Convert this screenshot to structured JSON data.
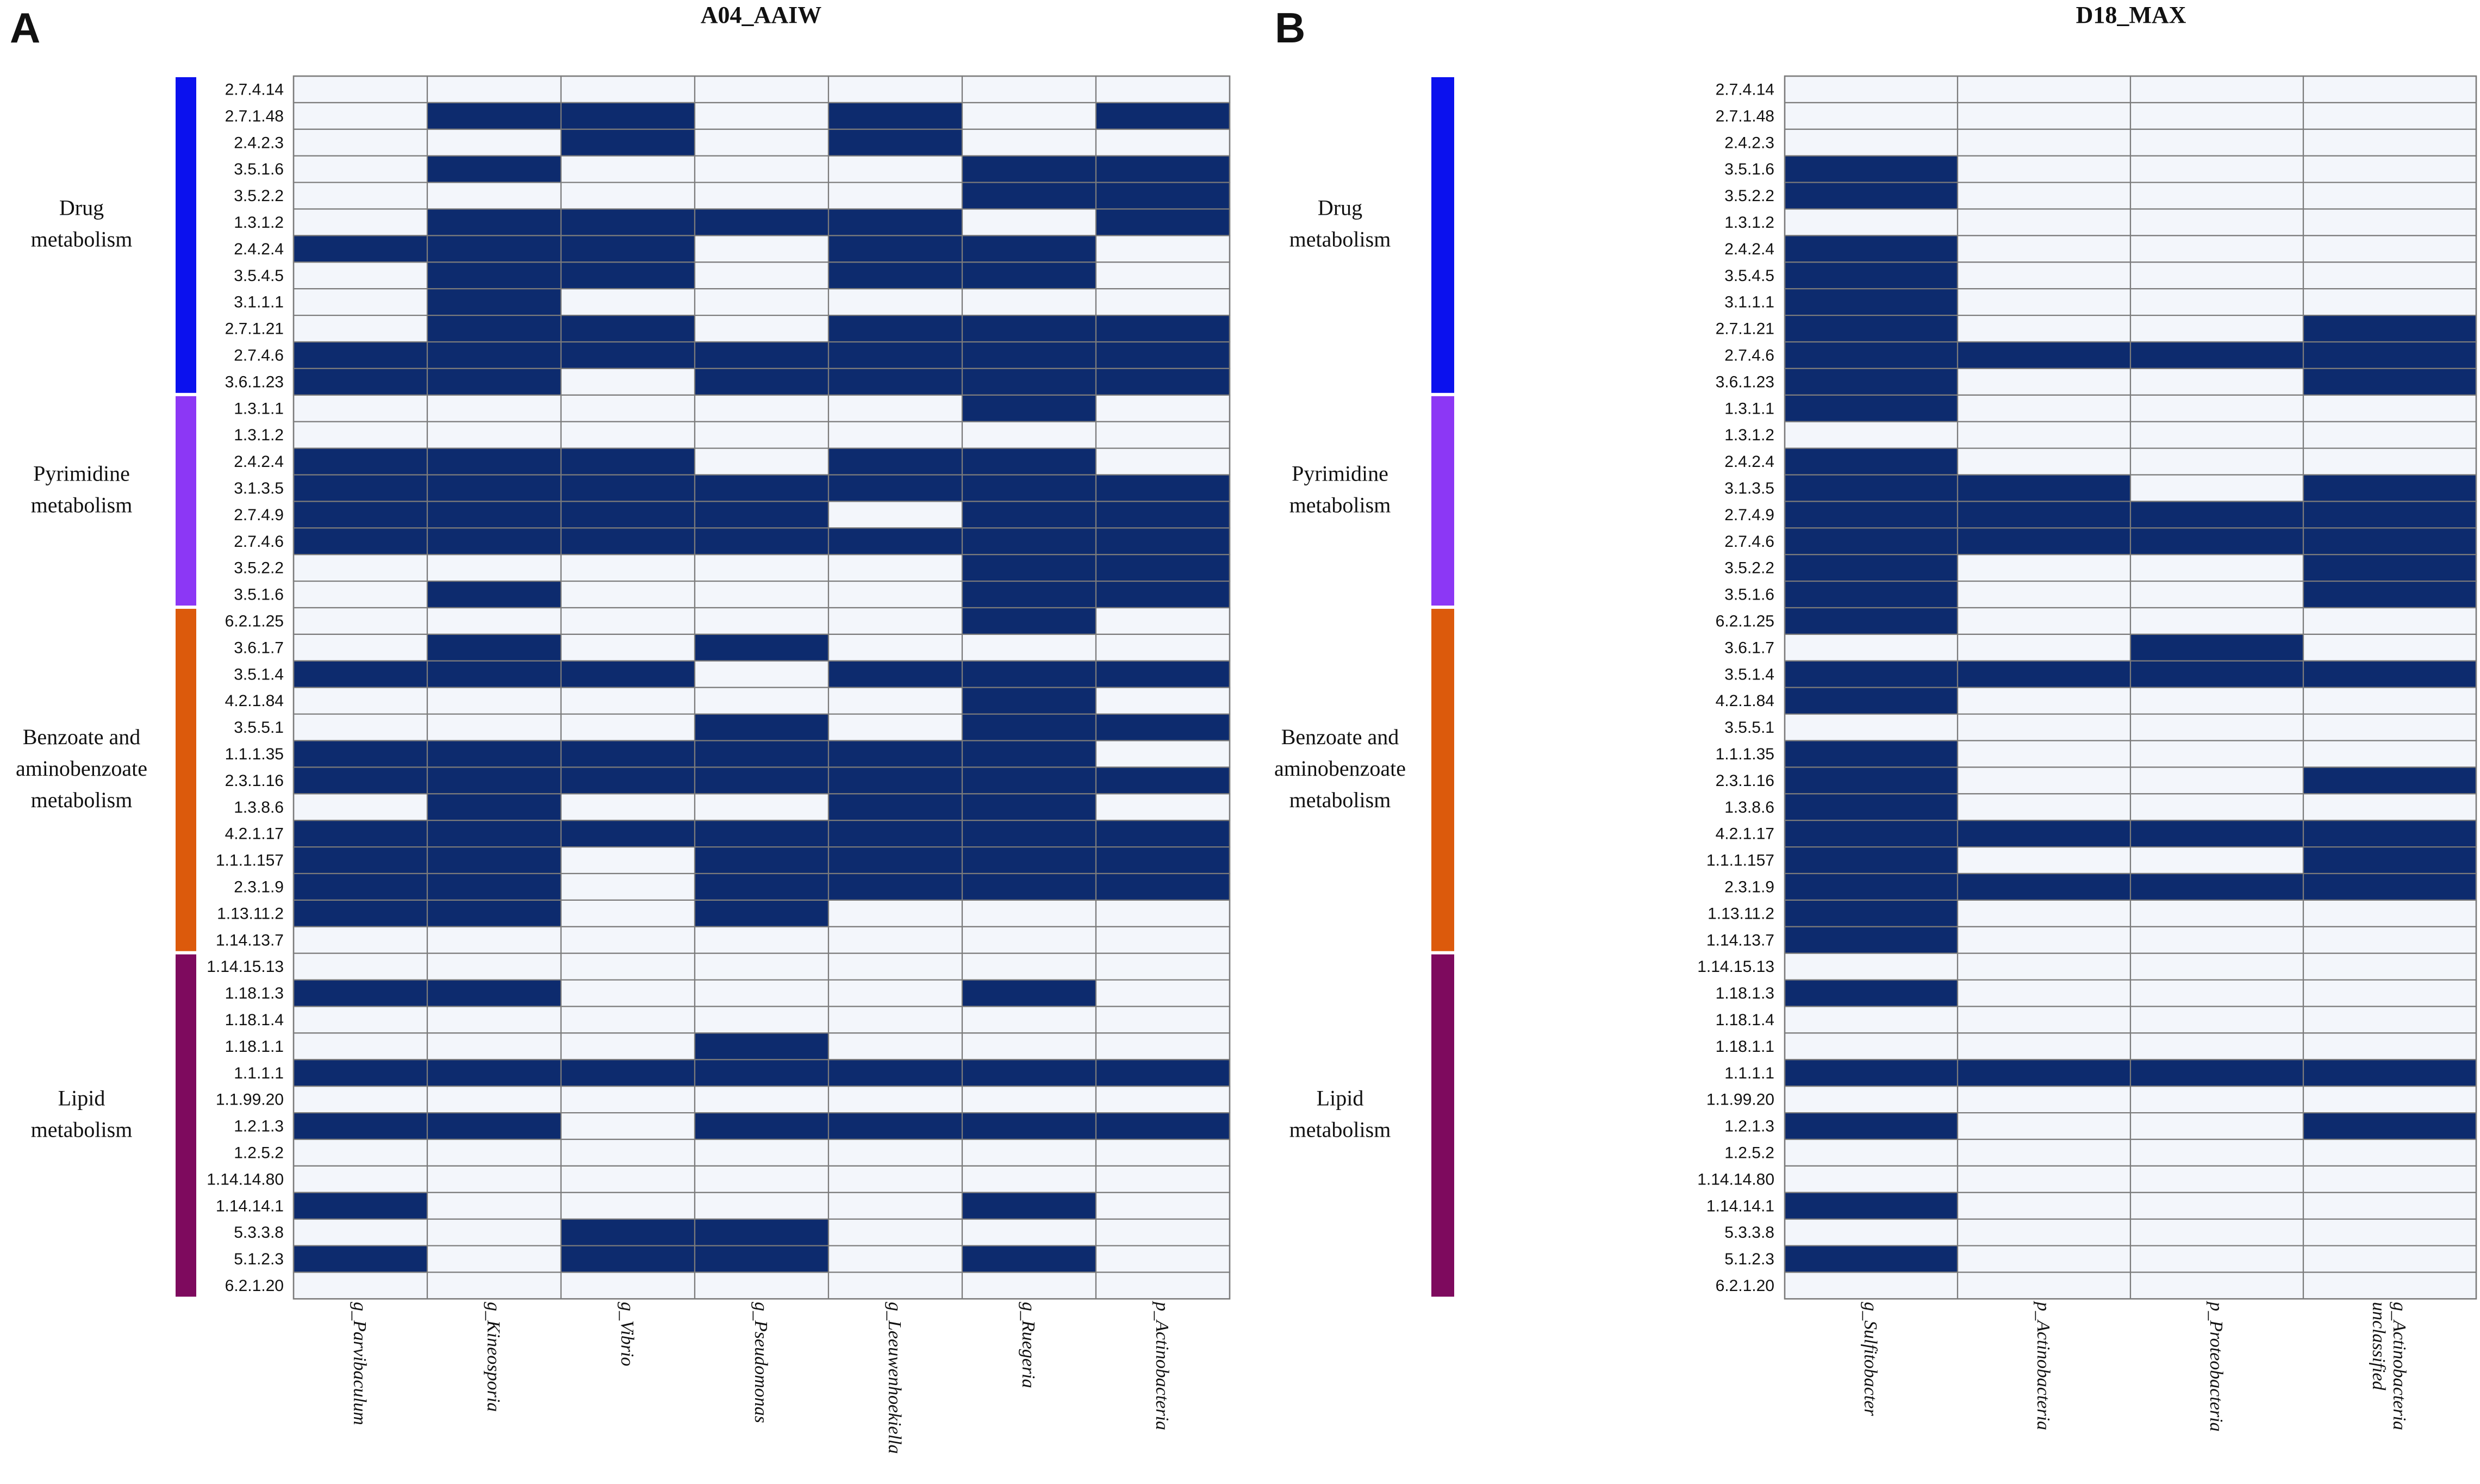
{
  "chart_data": [
    {
      "type": "heatmap",
      "panel_letter": "A",
      "title": "A04_AAIW",
      "columns": [
        "g_Parvibaculum",
        "g_Kineosporia",
        "g_Vibrio",
        "g_Pseudomonas",
        "g_Leeuwenhoekiella",
        "g_Ruegeria",
        "p_Actinobacteria"
      ],
      "groups": [
        {
          "name": "Drug metabolism",
          "label_lines": [
            "Drug",
            "metabolism"
          ],
          "color": "#0b11ee",
          "rows": [
            "2.7.4.14",
            "2.7.1.48",
            "2.4.2.3",
            "3.5.1.6",
            "3.5.2.2",
            "1.3.1.2",
            "2.4.2.4",
            "3.5.4.5",
            "3.1.1.1",
            "2.7.1.21",
            "2.7.4.6",
            "3.6.1.23"
          ]
        },
        {
          "name": "Pyrimidine metabolism",
          "label_lines": [
            "Pyrimidine",
            "metabolism"
          ],
          "color": "#8c37f5",
          "rows": [
            "1.3.1.1",
            "1.3.1.2",
            "2.4.2.4",
            "3.1.3.5",
            "2.7.4.9",
            "2.7.4.6",
            "3.5.2.2",
            "3.5.1.6"
          ]
        },
        {
          "name": "Benzoate and aminobenzoate metabolism",
          "label_lines": [
            "Benzoate and",
            "aminobenzoate",
            "metabolism"
          ],
          "color": "#dc5a0c",
          "rows": [
            "6.2.1.25",
            "3.6.1.7",
            "3.5.1.4",
            "4.2.1.84",
            "3.5.5.1",
            "1.1.1.35",
            "2.3.1.16",
            "1.3.8.6",
            "4.2.1.17",
            "1.1.1.157",
            "2.3.1.9",
            "1.13.11.2",
            "1.14.13.7"
          ]
        },
        {
          "name": "Lipid metabolism",
          "label_lines": [
            "Lipid",
            "metabolism"
          ],
          "color": "#7e0a5e",
          "rows": [
            "1.14.15.13",
            "1.18.1.3",
            "1.18.1.4",
            "1.18.1.1",
            "1.1.1.1",
            "1.1.99.20",
            "1.2.1.3",
            "1.2.5.2",
            "1.14.14.80",
            "1.14.14.1",
            "5.3.3.8",
            "5.1.2.3",
            "6.2.1.20"
          ]
        }
      ],
      "presence": [
        [
          0,
          0,
          0,
          0,
          0,
          0,
          0
        ],
        [
          0,
          1,
          1,
          0,
          1,
          0,
          1
        ],
        [
          0,
          0,
          1,
          0,
          1,
          0,
          0
        ],
        [
          0,
          1,
          0,
          0,
          0,
          1,
          1
        ],
        [
          0,
          0,
          0,
          0,
          0,
          1,
          1
        ],
        [
          0,
          1,
          1,
          1,
          1,
          0,
          1
        ],
        [
          1,
          1,
          1,
          0,
          1,
          1,
          0
        ],
        [
          0,
          1,
          1,
          0,
          1,
          1,
          0
        ],
        [
          0,
          1,
          0,
          0,
          0,
          0,
          0
        ],
        [
          0,
          1,
          1,
          0,
          1,
          1,
          1
        ],
        [
          1,
          1,
          1,
          1,
          1,
          1,
          1
        ],
        [
          1,
          1,
          0,
          1,
          1,
          1,
          1
        ],
        [
          0,
          0,
          0,
          0,
          0,
          1,
          0
        ],
        [
          0,
          0,
          0,
          0,
          0,
          0,
          0
        ],
        [
          1,
          1,
          1,
          0,
          1,
          1,
          0
        ],
        [
          1,
          1,
          1,
          1,
          1,
          1,
          1
        ],
        [
          1,
          1,
          1,
          1,
          0,
          1,
          1
        ],
        [
          1,
          1,
          1,
          1,
          1,
          1,
          1
        ],
        [
          0,
          0,
          0,
          0,
          0,
          1,
          1
        ],
        [
          0,
          1,
          0,
          0,
          0,
          1,
          1
        ],
        [
          0,
          0,
          0,
          0,
          0,
          1,
          0
        ],
        [
          0,
          1,
          0,
          1,
          0,
          0,
          0
        ],
        [
          1,
          1,
          1,
          0,
          1,
          1,
          1
        ],
        [
          0,
          0,
          0,
          0,
          0,
          1,
          0
        ],
        [
          0,
          0,
          0,
          1,
          0,
          1,
          1
        ],
        [
          1,
          1,
          1,
          1,
          1,
          1,
          0
        ],
        [
          1,
          1,
          1,
          1,
          1,
          1,
          1
        ],
        [
          0,
          1,
          0,
          0,
          1,
          1,
          0
        ],
        [
          1,
          1,
          1,
          1,
          1,
          1,
          1
        ],
        [
          1,
          1,
          0,
          1,
          1,
          1,
          1
        ],
        [
          1,
          1,
          0,
          1,
          1,
          1,
          1
        ],
        [
          1,
          1,
          0,
          1,
          0,
          0,
          0
        ],
        [
          0,
          0,
          0,
          0,
          0,
          0,
          0
        ],
        [
          0,
          0,
          0,
          0,
          0,
          0,
          0
        ],
        [
          1,
          1,
          0,
          0,
          0,
          1,
          0
        ],
        [
          0,
          0,
          0,
          0,
          0,
          0,
          0
        ],
        [
          0,
          0,
          0,
          1,
          0,
          0,
          0
        ],
        [
          1,
          1,
          1,
          1,
          1,
          1,
          1
        ],
        [
          0,
          0,
          0,
          0,
          0,
          0,
          0
        ],
        [
          1,
          1,
          0,
          1,
          1,
          1,
          1
        ],
        [
          0,
          0,
          0,
          0,
          0,
          0,
          0
        ],
        [
          0,
          0,
          0,
          0,
          0,
          0,
          0
        ],
        [
          1,
          0,
          0,
          0,
          0,
          1,
          0
        ],
        [
          0,
          0,
          1,
          1,
          0,
          0,
          0
        ],
        [
          1,
          0,
          1,
          1,
          0,
          1,
          0
        ],
        [
          0,
          0,
          0,
          0,
          0,
          0,
          0
        ]
      ]
    },
    {
      "type": "heatmap",
      "panel_letter": "B",
      "title": "D18_MAX",
      "columns": [
        "g_Sulfitobacter",
        "p_Actinobacteria",
        "p_Proteobacteria",
        "g_Actinobacteria unclassified"
      ],
      "groups": [
        {
          "name": "Drug metabolism",
          "label_lines": [
            "Drug",
            "metabolism"
          ],
          "color": "#0b11ee",
          "rows": [
            "2.7.4.14",
            "2.7.1.48",
            "2.4.2.3",
            "3.5.1.6",
            "3.5.2.2",
            "1.3.1.2",
            "2.4.2.4",
            "3.5.4.5",
            "3.1.1.1",
            "2.7.1.21",
            "2.7.4.6",
            "3.6.1.23"
          ]
        },
        {
          "name": "Pyrimidine metabolism",
          "label_lines": [
            "Pyrimidine",
            "metabolism"
          ],
          "color": "#8c37f5",
          "rows": [
            "1.3.1.1",
            "1.3.1.2",
            "2.4.2.4",
            "3.1.3.5",
            "2.7.4.9",
            "2.7.4.6",
            "3.5.2.2",
            "3.5.1.6"
          ]
        },
        {
          "name": "Benzoate and aminobenzoate metabolism",
          "label_lines": [
            "Benzoate and",
            "aminobenzoate",
            "metabolism"
          ],
          "color": "#dc5a0c",
          "rows": [
            "6.2.1.25",
            "3.6.1.7",
            "3.5.1.4",
            "4.2.1.84",
            "3.5.5.1",
            "1.1.1.35",
            "2.3.1.16",
            "1.3.8.6",
            "4.2.1.17",
            "1.1.1.157",
            "2.3.1.9",
            "1.13.11.2",
            "1.14.13.7"
          ]
        },
        {
          "name": "Lipid metabolism",
          "label_lines": [
            "Lipid",
            "metabolism"
          ],
          "color": "#7e0a5e",
          "rows": [
            "1.14.15.13",
            "1.18.1.3",
            "1.18.1.4",
            "1.18.1.1",
            "1.1.1.1",
            "1.1.99.20",
            "1.2.1.3",
            "1.2.5.2",
            "1.14.14.80",
            "1.14.14.1",
            "5.3.3.8",
            "5.1.2.3",
            "6.2.1.20"
          ]
        }
      ],
      "presence": [
        [
          0,
          0,
          0,
          0
        ],
        [
          0,
          0,
          0,
          0
        ],
        [
          0,
          0,
          0,
          0
        ],
        [
          1,
          0,
          0,
          0
        ],
        [
          1,
          0,
          0,
          0
        ],
        [
          0,
          0,
          0,
          0
        ],
        [
          1,
          0,
          0,
          0
        ],
        [
          1,
          0,
          0,
          0
        ],
        [
          1,
          0,
          0,
          0
        ],
        [
          1,
          0,
          0,
          1
        ],
        [
          1,
          1,
          1,
          1
        ],
        [
          1,
          0,
          0,
          1
        ],
        [
          1,
          0,
          0,
          0
        ],
        [
          0,
          0,
          0,
          0
        ],
        [
          1,
          0,
          0,
          0
        ],
        [
          1,
          1,
          0,
          1
        ],
        [
          1,
          1,
          1,
          1
        ],
        [
          1,
          1,
          1,
          1
        ],
        [
          1,
          0,
          0,
          1
        ],
        [
          1,
          0,
          0,
          1
        ],
        [
          1,
          0,
          0,
          0
        ],
        [
          0,
          0,
          1,
          0
        ],
        [
          1,
          1,
          1,
          1
        ],
        [
          1,
          0,
          0,
          0
        ],
        [
          0,
          0,
          0,
          0
        ],
        [
          1,
          0,
          0,
          0
        ],
        [
          1,
          0,
          0,
          1
        ],
        [
          1,
          0,
          0,
          0
        ],
        [
          1,
          1,
          1,
          1
        ],
        [
          1,
          0,
          0,
          1
        ],
        [
          1,
          1,
          1,
          1
        ],
        [
          1,
          0,
          0,
          0
        ],
        [
          1,
          0,
          0,
          0
        ],
        [
          0,
          0,
          0,
          0
        ],
        [
          1,
          0,
          0,
          0
        ],
        [
          0,
          0,
          0,
          0
        ],
        [
          0,
          0,
          0,
          0
        ],
        [
          1,
          1,
          1,
          1
        ],
        [
          0,
          0,
          0,
          0
        ],
        [
          1,
          0,
          0,
          1
        ],
        [
          0,
          0,
          0,
          0
        ],
        [
          0,
          0,
          0,
          0
        ],
        [
          1,
          0,
          0,
          0
        ],
        [
          0,
          0,
          0,
          0
        ],
        [
          1,
          0,
          0,
          0
        ],
        [
          0,
          0,
          0,
          0
        ]
      ]
    }
  ],
  "colors": {
    "present": "#0d2b6e",
    "absent": "#f3f6fb",
    "grid": "#7b7b7b",
    "text": "#111111"
  }
}
